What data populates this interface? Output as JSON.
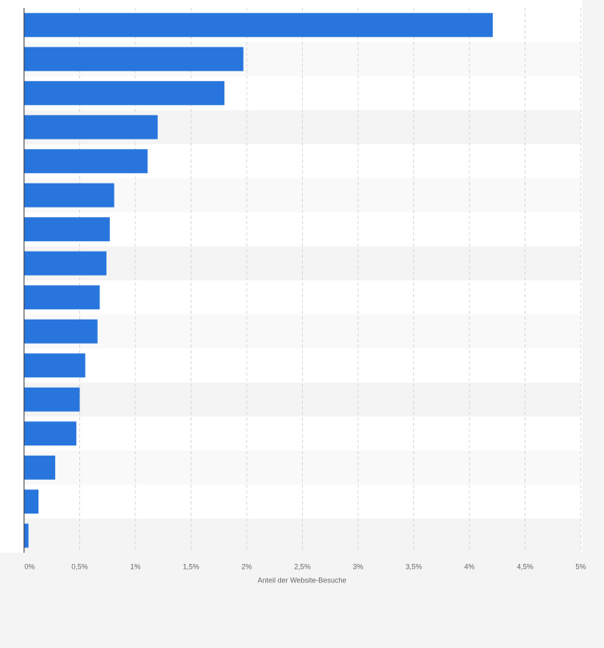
{
  "chart_data": {
    "type": "bar",
    "orientation": "horizontal",
    "x_label": "Anteil der Website-Besuche",
    "categories": [
      null,
      null,
      null,
      null,
      null,
      null,
      null,
      null,
      null,
      null,
      null,
      null,
      null,
      null,
      null,
      null
    ],
    "values": [
      4.21,
      1.97,
      1.8,
      1.2,
      1.11,
      0.81,
      0.77,
      0.74,
      0.68,
      0.66,
      0.55,
      0.5,
      0.47,
      0.28,
      0.13,
      0.04
    ],
    "color": "#2876dd",
    "xlim": [
      0,
      5
    ],
    "xticks": [
      {
        "value": 0,
        "label": "0%"
      },
      {
        "value": 0.5,
        "label": "0,5%"
      },
      {
        "value": 1,
        "label": "1%"
      },
      {
        "value": 1.5,
        "label": "1,5%"
      },
      {
        "value": 2,
        "label": "2%"
      },
      {
        "value": 2.5,
        "label": "2,5%"
      },
      {
        "value": 3,
        "label": "3%"
      },
      {
        "value": 3.5,
        "label": "3,5%"
      },
      {
        "value": 4,
        "label": "4%"
      },
      {
        "value": 4.5,
        "label": "4,5%"
      },
      {
        "value": 5,
        "label": "5%"
      }
    ],
    "grid": true
  }
}
